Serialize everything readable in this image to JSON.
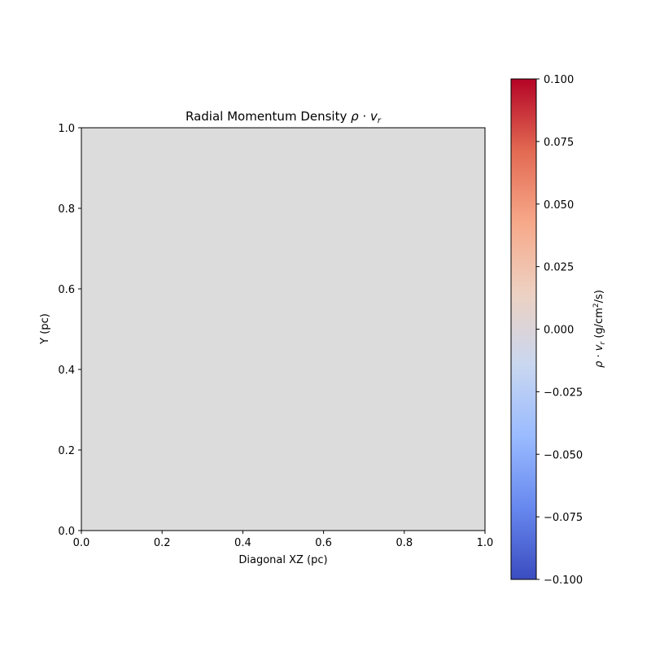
{
  "chart_data": {
    "type": "heatmap",
    "title": {
      "main": "Radial Momentum Density",
      "math_symbol": "ρ",
      "math_op": " · ",
      "math_var": "v",
      "math_sub": "r"
    },
    "xlabel": "Diagonal XZ (pc)",
    "ylabel": "Y (pc)",
    "xlim": [
      0.0,
      1.0
    ],
    "ylim": [
      0.0,
      1.0
    ],
    "x_ticks": [
      0.0,
      0.2,
      0.4,
      0.6,
      0.8,
      1.0
    ],
    "y_ticks": [
      0.0,
      0.2,
      0.4,
      0.6,
      0.8,
      1.0
    ],
    "x_tick_labels": [
      "0.0",
      "0.2",
      "0.4",
      "0.6",
      "0.8",
      "1.0"
    ],
    "y_tick_labels": [
      "0.0",
      "0.2",
      "0.4",
      "0.6",
      "0.8",
      "1.0"
    ],
    "values": [
      [
        0.0
      ]
    ],
    "fill_color": "#dddcdc",
    "colormap": "coolwarm",
    "colorbar": {
      "range": [
        -0.1,
        0.1
      ],
      "ticks": [
        -0.1,
        -0.075,
        -0.05,
        -0.025,
        0.0,
        0.025,
        0.05,
        0.075,
        0.1
      ],
      "tick_labels": [
        "−0.100",
        "−0.075",
        "−0.050",
        "−0.025",
        "0.000",
        "0.025",
        "0.050",
        "0.075",
        "0.100"
      ],
      "label": {
        "symbol": "ρ",
        "op": " · ",
        "var": "v",
        "sub": "r",
        "unit_pre": " (g/cm",
        "unit_sup": "2",
        "unit_post": "/s)"
      },
      "stops": [
        "#3b4cc0",
        "#6788ee",
        "#9abbff",
        "#c9d7f0",
        "#edd1c2",
        "#f7a889",
        "#e26952",
        "#b40426"
      ]
    }
  }
}
